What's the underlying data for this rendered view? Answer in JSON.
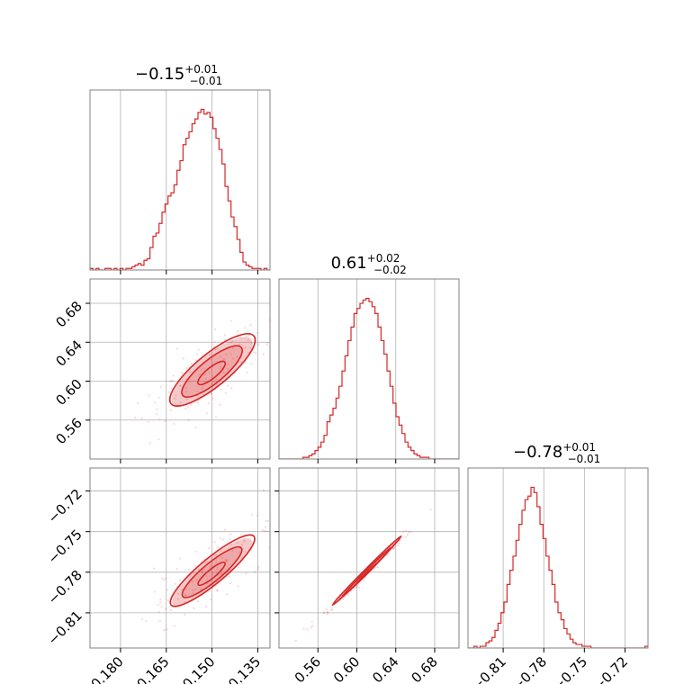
{
  "chart_data": {
    "type": "corner",
    "color": "#d62728",
    "grid": true,
    "parameters": [
      {
        "title_value": "−0.15",
        "title_plus": "+0.01",
        "title_minus": "−0.01",
        "range": [
          -0.19,
          -0.131
        ],
        "ticks": [
          -0.18,
          -0.165,
          -0.15,
          -0.135
        ],
        "tick_labels": [
          "−0.180",
          "−0.165",
          "−0.150",
          "−0.135"
        ],
        "hist": {
          "edges": [
            -0.19,
            -0.131
          ],
          "counts": [
            1,
            0,
            1,
            0,
            0,
            1,
            1,
            0,
            1,
            0,
            1,
            0,
            1,
            1,
            2,
            3,
            4,
            3,
            6,
            7,
            14,
            21,
            23,
            29,
            36,
            41,
            46,
            48,
            53,
            62,
            68,
            78,
            82,
            86,
            91,
            94,
            98,
            100,
            97,
            98,
            95,
            88,
            82,
            75,
            66,
            52,
            43,
            33,
            27,
            19,
            11,
            5,
            3,
            2,
            1,
            1,
            1,
            0,
            1,
            0
          ]
        }
      },
      {
        "title_value": "0.61",
        "title_plus": "+0.02",
        "title_minus": "−0.02",
        "range": [
          0.52,
          0.705
        ],
        "ticks": [
          0.56,
          0.6,
          0.64,
          0.68
        ],
        "tick_labels": [
          "0.56",
          "0.60",
          "0.64",
          "0.68"
        ],
        "hist": {
          "edges": [
            0.52,
            0.705
          ],
          "counts": [
            0,
            0,
            0,
            0,
            0,
            0,
            0,
            0,
            1,
            1,
            2,
            3,
            5,
            7,
            10,
            14,
            22,
            26,
            30,
            36,
            43,
            52,
            61,
            70,
            78,
            86,
            89,
            92,
            94,
            95,
            93,
            90,
            86,
            78,
            70,
            62,
            52,
            43,
            33,
            25,
            20,
            15,
            10,
            7,
            5,
            3,
            2,
            1,
            1,
            1,
            0,
            0,
            0,
            0,
            0,
            0,
            0,
            0,
            0,
            0
          ]
        }
      },
      {
        "title_value": "−0.78",
        "title_plus": "+0.01",
        "title_minus": "−0.01",
        "range": [
          -0.836,
          -0.703
        ],
        "ticks": [
          -0.81,
          -0.78,
          -0.75,
          -0.72
        ],
        "tick_labels": [
          "−0.81",
          "−0.78",
          "−0.75",
          "−0.72"
        ],
        "hist": {
          "edges": [
            -0.836,
            -0.703
          ],
          "counts": [
            0,
            0,
            1,
            0,
            1,
            1,
            3,
            4,
            6,
            10,
            14,
            20,
            26,
            36,
            44,
            52,
            61,
            70,
            78,
            84,
            86,
            91,
            88,
            80,
            70,
            62,
            52,
            44,
            36,
            26,
            20,
            16,
            11,
            8,
            5,
            3,
            2,
            2,
            1,
            1,
            1,
            0,
            0,
            0,
            0,
            0,
            0,
            0,
            0,
            0,
            0,
            0,
            0,
            0,
            0,
            0,
            0,
            0,
            0,
            1
          ]
        }
      }
    ],
    "pairs": [
      {
        "x_param": 0,
        "y_param": 1,
        "center": [
          -0.15,
          0.61
        ],
        "major_axis": [
          0.0115,
          0.0295
        ],
        "minor_half_width": 0.0045,
        "contour_levels": [
          0.39,
          0.86,
          1.18
        ]
      },
      {
        "x_param": 0,
        "y_param": 2,
        "center": [
          -0.15,
          -0.78
        ],
        "major_axis": [
          0.0115,
          0.0215
        ],
        "minor_half_width": 0.0035,
        "contour_levels": [
          0.39,
          0.86,
          1.18
        ]
      },
      {
        "x_param": 1,
        "y_param": 2,
        "center": [
          0.61,
          -0.78
        ],
        "major_axis": [
          0.03,
          0.0216
        ],
        "minor_half_width": 0.0012,
        "contour_levels": [
          0.39,
          0.86,
          1.18
        ]
      }
    ]
  }
}
